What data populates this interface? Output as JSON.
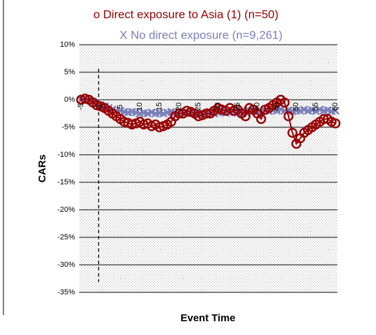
{
  "chart_data": {
    "type": "line",
    "xlabel": "Event Time",
    "ylabel": "CARs",
    "x": [
      -5,
      -4,
      -3,
      -2,
      -1,
      0,
      1,
      2,
      3,
      4,
      5,
      6,
      7,
      8,
      9,
      10,
      11,
      12,
      13,
      14,
      15,
      16,
      17,
      18,
      19,
      20,
      21,
      22,
      23,
      24,
      25,
      26,
      27,
      28,
      29,
      30,
      31,
      32,
      33,
      34,
      35,
      36,
      37,
      38,
      39,
      40,
      41,
      42,
      43,
      44,
      45,
      46,
      47,
      48,
      49,
      50,
      51,
      52,
      53,
      54,
      55,
      56,
      57,
      58,
      59,
      60
    ],
    "xlim": [
      -5.5,
      60.5
    ],
    "xticks": [
      -5,
      0,
      5,
      10,
      15,
      20,
      25,
      30,
      35,
      40,
      45,
      50,
      55,
      60
    ],
    "ylim": [
      -35,
      10
    ],
    "yticks": [
      {
        "value": 10,
        "label": "10%"
      },
      {
        "value": 5,
        "label": "5%"
      },
      {
        "value": 0,
        "label": "0%"
      },
      {
        "value": -5,
        "label": "-5%"
      },
      {
        "value": -10,
        "label": "-10%"
      },
      {
        "value": -15,
        "label": "-15%"
      },
      {
        "value": -20,
        "label": "-20%"
      },
      {
        "value": -25,
        "label": "-25%"
      },
      {
        "value": -30,
        "label": "-30%"
      },
      {
        "value": -35,
        "label": "-35%"
      }
    ],
    "grid": true,
    "vline": 0,
    "series": [
      {
        "name": "X No direct exposure (n=9,261)",
        "color": "#7a7fb8",
        "marker": "x",
        "values": [
          0,
          0,
          0,
          -0.3,
          -0.6,
          -1,
          -1.2,
          -1.5,
          -1.8,
          -2,
          -2,
          -2.2,
          -2.3,
          -2.2,
          -2.3,
          -2.5,
          -2.4,
          -2.5,
          -2.3,
          -2.5,
          -2.4,
          -2.5,
          -2.3,
          -2.2,
          -2.4,
          -2.2,
          -2.5,
          -2.3,
          -2.5,
          -2.4,
          -2.6,
          -2.5,
          -2.4,
          -2.2,
          -2.5,
          -2.3,
          -2.2,
          -2.4,
          -2.3,
          -2.2,
          -2.4,
          -2.1,
          -2.2,
          -2,
          -2.1,
          -2.3,
          -2.2,
          -2,
          -2.1,
          -1.9,
          -2,
          -1.8,
          -2,
          -1.9,
          -2.1,
          -2,
          -2,
          -1.8,
          -2,
          -1.9,
          -2.1,
          -1.8,
          -2,
          -1.9,
          -2.1,
          -2
        ]
      },
      {
        "name": "o Direct exposure to Asia (1) (n=50)",
        "color": "#990000",
        "marker": "o",
        "values": [
          0,
          0.2,
          0,
          -0.5,
          -1,
          -1.2,
          -1.5,
          -2,
          -2.5,
          -3,
          -3.5,
          -4,
          -4.2,
          -4.5,
          -4.3,
          -4,
          -4.5,
          -4.3,
          -4.8,
          -4.5,
          -5,
          -4.8,
          -4.5,
          -4,
          -3,
          -2.5,
          -2.5,
          -2,
          -2.2,
          -2.5,
          -3,
          -2.8,
          -2.5,
          -2.5,
          -2,
          -1.5,
          -1.8,
          -2,
          -1.5,
          -2,
          -1.8,
          -2.5,
          -3,
          -1.5,
          -1.8,
          -2.5,
          -3.5,
          -1.8,
          -1.5,
          -1,
          -0.5,
          0,
          -0.5,
          -3,
          -6,
          -8,
          -7,
          -6,
          -5.5,
          -5,
          -4.5,
          -4,
          -3.5,
          -3.5,
          -4,
          -4.3
        ]
      }
    ]
  }
}
